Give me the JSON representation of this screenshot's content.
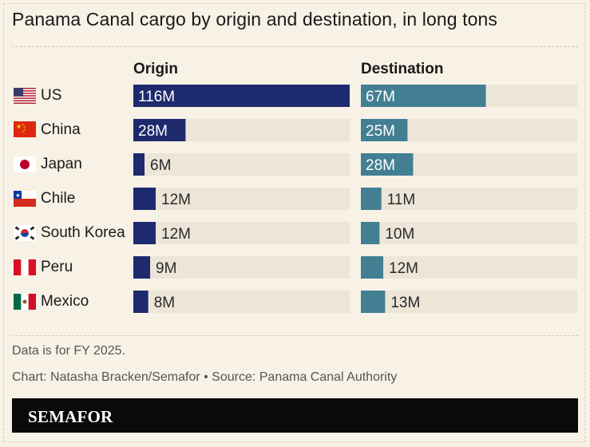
{
  "title": "Panama Canal cargo by origin and destination, in long tons",
  "note": "Data is for FY 2025.",
  "credit": "Chart: Natasha Bracken/Semafor • Source: Panama Canal Authority",
  "brand": "SEMAFOR",
  "colors": {
    "origin": "#1e2a6e",
    "destination": "#437f93",
    "track": "#ece5d8",
    "background": "#f7f1e6"
  },
  "chart_data": {
    "type": "bar",
    "unit": "long tons",
    "categories": [
      "US",
      "China",
      "Japan",
      "Chile",
      "South Korea",
      "Peru",
      "Mexico"
    ],
    "flags": [
      "us-flag-icon",
      "china-flag-icon",
      "japan-flag-icon",
      "chile-flag-icon",
      "south-korea-flag-icon",
      "peru-flag-icon",
      "mexico-flag-icon"
    ],
    "series": [
      {
        "name": "Origin",
        "values": [
          116,
          28,
          6,
          12,
          12,
          9,
          8
        ],
        "labels": [
          "116M",
          "28M",
          "6M",
          "12M",
          "12M",
          "9M",
          "8M"
        ]
      },
      {
        "name": "Destination",
        "values": [
          67,
          25,
          28,
          11,
          10,
          12,
          13
        ],
        "labels": [
          "67M",
          "25M",
          "28M",
          "11M",
          "10M",
          "12M",
          "13M"
        ]
      }
    ],
    "xlim": [
      0,
      116
    ],
    "legend": "column headers"
  }
}
